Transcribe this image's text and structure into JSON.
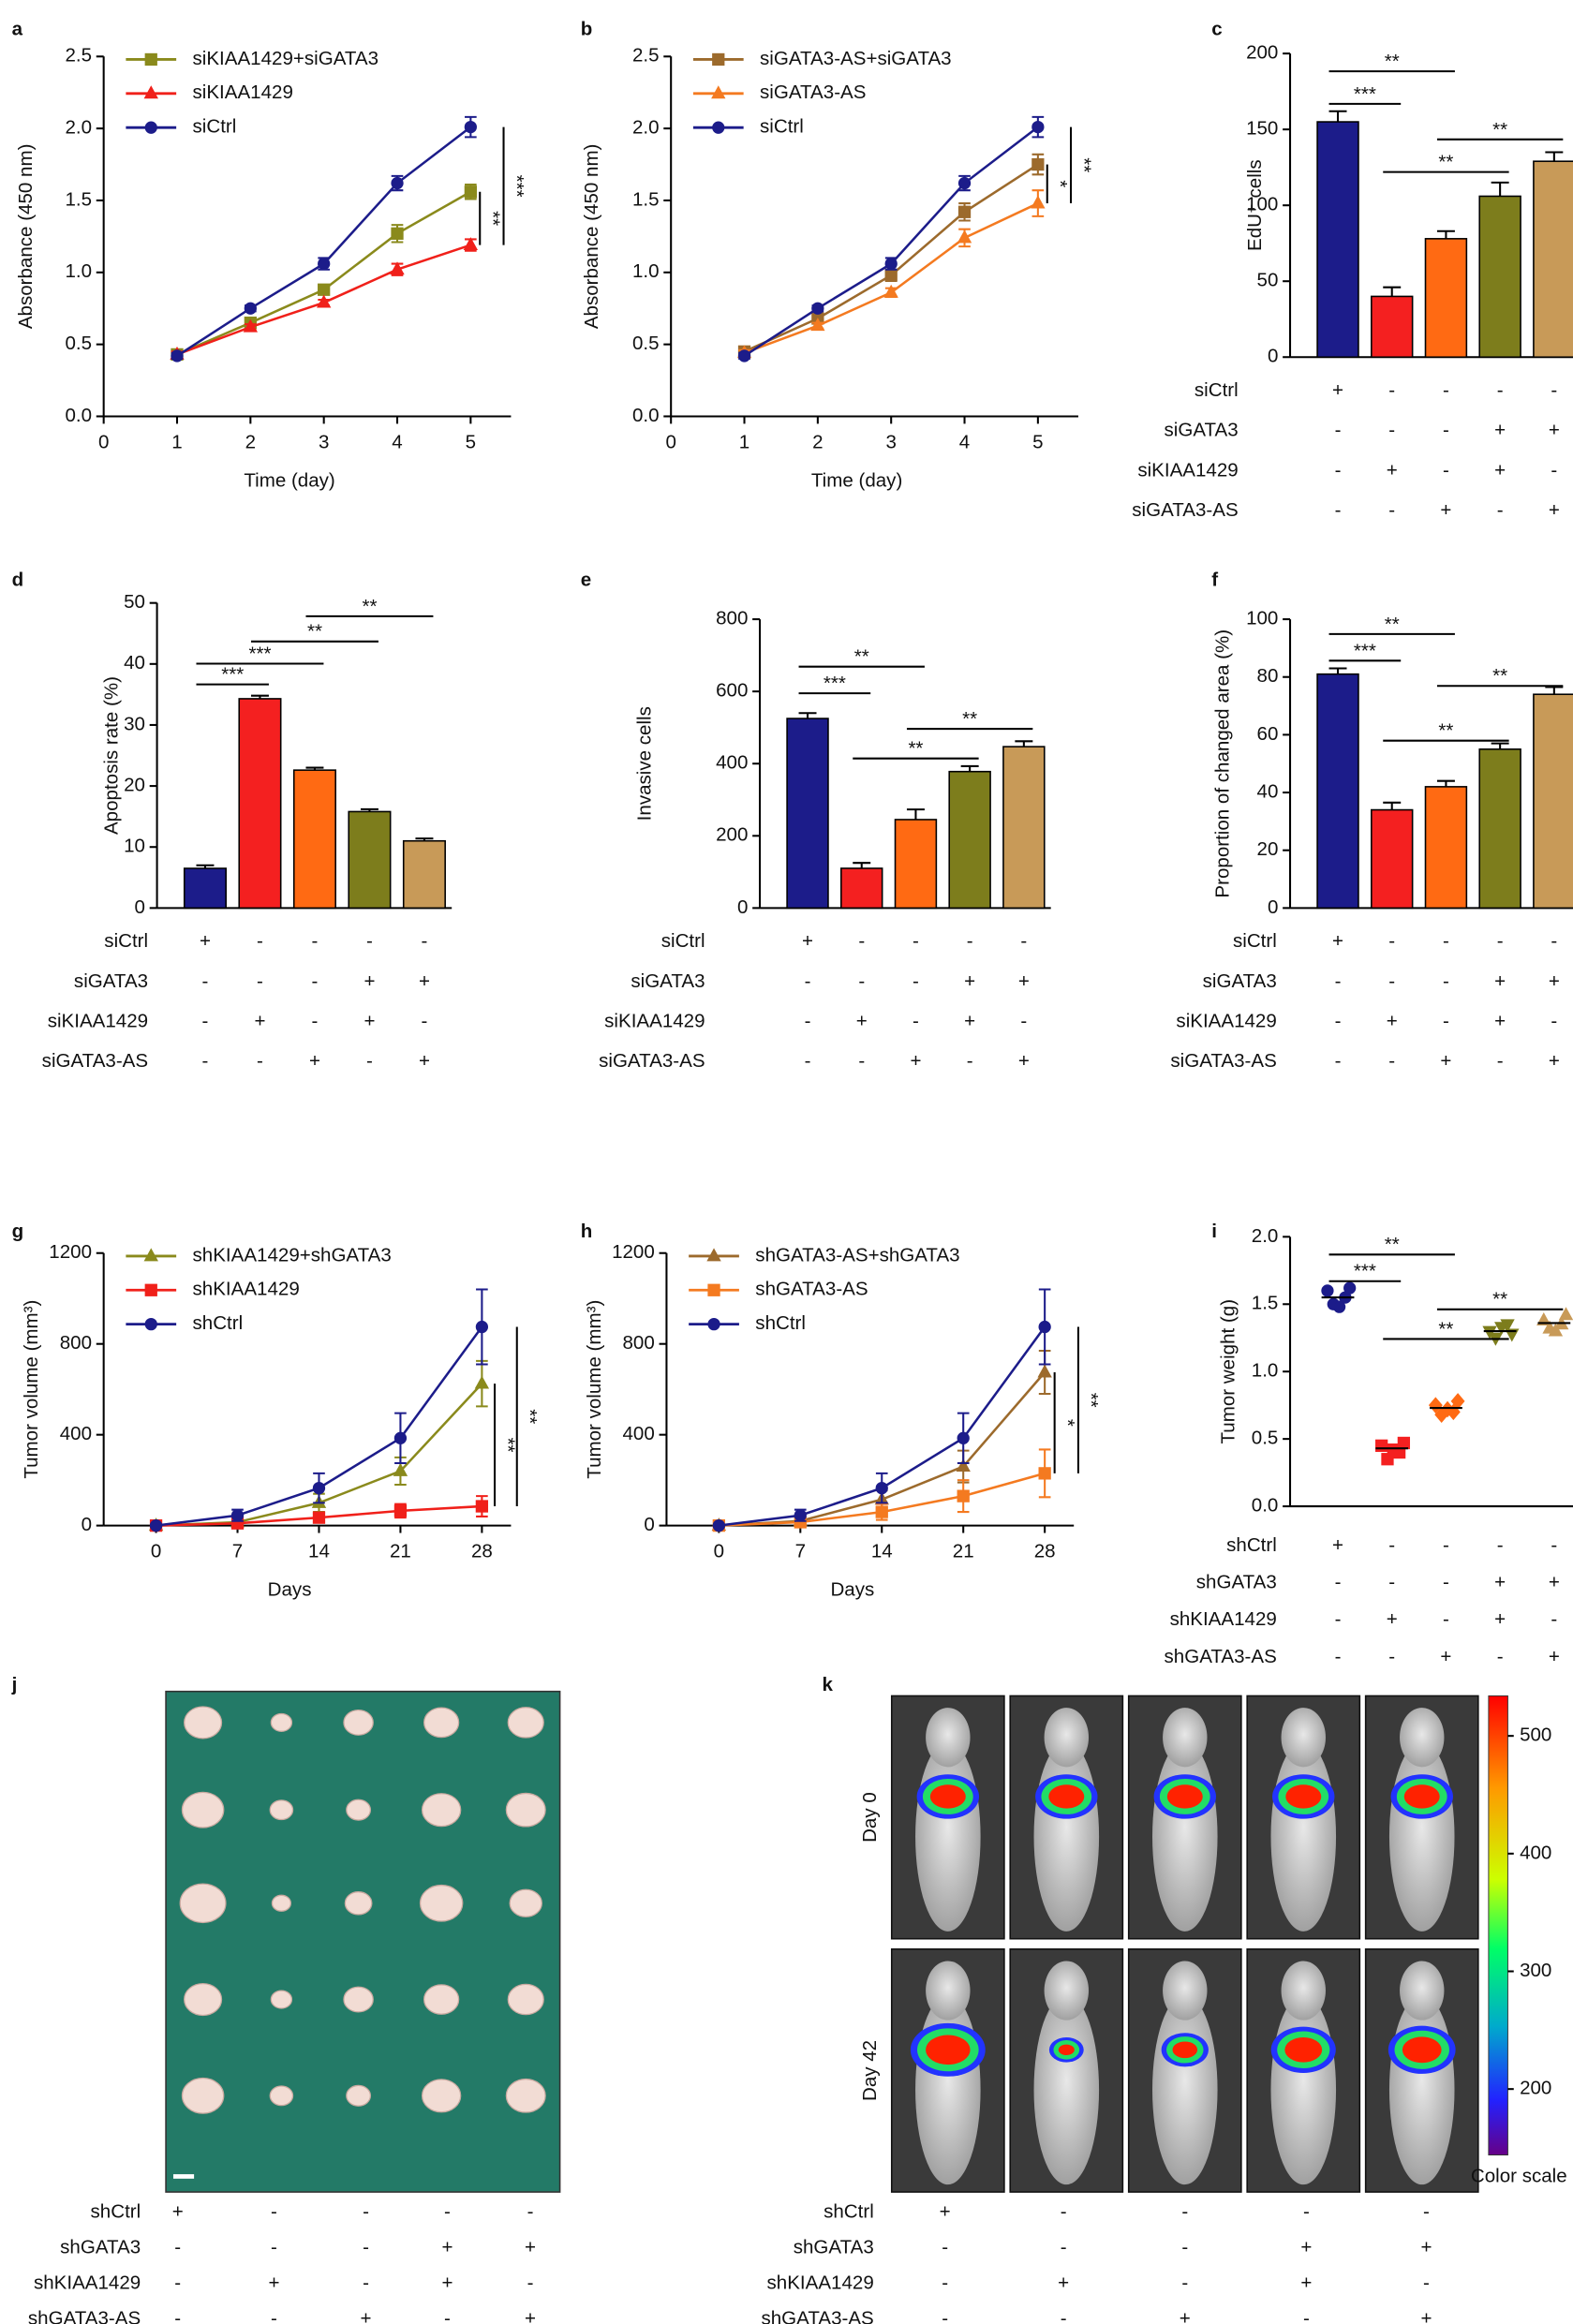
{
  "chart_data": [
    {
      "panel": "a",
      "type": "line",
      "ylabel": "Absorbance (450 nm)",
      "xlabel": "Time (day)",
      "x": [
        1,
        2,
        3,
        4,
        5
      ],
      "xlim": [
        0,
        5.55
      ],
      "xticks": [
        0,
        1,
        2,
        3,
        4,
        5
      ],
      "ylim": [
        0,
        2.5
      ],
      "yticks": [
        {
          "value": 0,
          "label": "0.0"
        },
        0.5,
        {
          "value": 1,
          "label": "1.0"
        },
        1.5,
        {
          "value": 2,
          "label": "2.0"
        },
        2.5
      ],
      "series": [
        {
          "name": "siKIAA1429+siGATA3",
          "color": "#8a8a1c",
          "marker": "square",
          "values": [
            0.43,
            0.65,
            0.88,
            1.27,
            1.56
          ],
          "errors": [
            0.02,
            0.03,
            0.03,
            0.06,
            0.05
          ]
        },
        {
          "name": "siKIAA1429",
          "color": "#f0201a",
          "marker": "triangle",
          "values": [
            0.43,
            0.62,
            0.79,
            1.02,
            1.19
          ],
          "errors": [
            0.02,
            0.02,
            0.02,
            0.04,
            0.04
          ]
        },
        {
          "name": "siCtrl",
          "color": "#1c1c8a",
          "marker": "circle",
          "values": [
            0.42,
            0.75,
            1.06,
            1.62,
            2.01
          ],
          "errors": [
            0.02,
            0.02,
            0.04,
            0.05,
            0.07
          ]
        }
      ],
      "significance": [
        "**",
        "***"
      ]
    },
    {
      "panel": "b",
      "type": "line",
      "ylabel": "Absorbance (450 nm)",
      "xlabel": "Time (day)",
      "x": [
        1,
        2,
        3,
        4,
        5
      ],
      "xlim": [
        0,
        5.55
      ],
      "xticks": [
        0,
        1,
        2,
        3,
        4,
        5
      ],
      "ylim": [
        0,
        2.5
      ],
      "yticks": [
        {
          "value": 0,
          "label": "0.0"
        },
        0.5,
        {
          "value": 1,
          "label": "1.0"
        },
        1.5,
        {
          "value": 2,
          "label": "2.0"
        },
        2.5
      ],
      "series": [
        {
          "name": "siGATA3-AS+siGATA3",
          "color": "#9c6a2c",
          "marker": "square",
          "values": [
            0.45,
            0.68,
            0.98,
            1.42,
            1.75
          ],
          "errors": [
            0.02,
            0.03,
            0.04,
            0.06,
            0.07
          ]
        },
        {
          "name": "siGATA3-AS",
          "color": "#f47a20",
          "marker": "triangle",
          "values": [
            0.44,
            0.63,
            0.86,
            1.24,
            1.48
          ],
          "errors": [
            0.02,
            0.02,
            0.03,
            0.06,
            0.09
          ]
        },
        {
          "name": "siCtrl",
          "color": "#1c1c8a",
          "marker": "circle",
          "values": [
            0.42,
            0.75,
            1.06,
            1.62,
            2.01
          ],
          "errors": [
            0.02,
            0.02,
            0.04,
            0.05,
            0.07
          ]
        }
      ],
      "significance": [
        "*",
        "**"
      ]
    },
    {
      "panel": "c",
      "type": "bar",
      "ylabel": "EdU⁺ cells",
      "values": [
        155,
        40,
        78,
        106,
        129
      ],
      "errors": [
        7,
        6,
        5,
        9,
        6
      ],
      "colors": [
        "#1c1c8a",
        "#f42020",
        "#ff6a13",
        "#7d7d1c",
        "#c89a58"
      ],
      "ylim": [
        0,
        200
      ],
      "yticks": [
        0,
        50,
        100,
        150,
        200
      ],
      "conditions": [
        {
          "name": "siCtrl",
          "signs": [
            "+",
            "-",
            "-",
            "-",
            "-"
          ]
        },
        {
          "name": "siGATA3",
          "signs": [
            "-",
            "-",
            "-",
            "+",
            "+"
          ]
        },
        {
          "name": "siKIAA1429",
          "signs": [
            "-",
            "+",
            "-",
            "+",
            "-"
          ]
        },
        {
          "name": "siGATA3-AS",
          "signs": [
            "-",
            "-",
            "+",
            "-",
            "+"
          ]
        }
      ],
      "significance": [
        "**",
        "***",
        "**",
        "**"
      ]
    },
    {
      "panel": "d",
      "type": "bar",
      "ylabel": "Apoptosis rate (%)",
      "values": [
        6.5,
        34.3,
        22.6,
        15.8,
        11.0
      ],
      "errors": [
        0.5,
        0.5,
        0.4,
        0.4,
        0.4
      ],
      "colors": [
        "#1c1c8a",
        "#f42020",
        "#ff6a13",
        "#7d7d1c",
        "#c89a58"
      ],
      "ylim": [
        0,
        50
      ],
      "yticks": [
        0,
        10,
        20,
        30,
        40,
        50
      ],
      "conditions": [
        {
          "name": "siCtrl",
          "signs": [
            "+",
            "-",
            "-",
            "-",
            "-"
          ]
        },
        {
          "name": "siGATA3",
          "signs": [
            "-",
            "-",
            "-",
            "+",
            "+"
          ]
        },
        {
          "name": "siKIAA1429",
          "signs": [
            "-",
            "+",
            "-",
            "+",
            "-"
          ]
        },
        {
          "name": "siGATA3-AS",
          "signs": [
            "-",
            "-",
            "+",
            "-",
            "+"
          ]
        }
      ],
      "significance": [
        "***",
        "***",
        "**",
        "**"
      ]
    },
    {
      "panel": "e",
      "type": "bar",
      "ylabel": "Invasive cells",
      "values": [
        525,
        110,
        245,
        378,
        447
      ],
      "errors": [
        15,
        15,
        28,
        15,
        15
      ],
      "colors": [
        "#1c1c8a",
        "#f42020",
        "#ff6a13",
        "#7d7d1c",
        "#c89a58"
      ],
      "ylim": [
        0,
        800
      ],
      "yticks": [
        0,
        200,
        400,
        600,
        800
      ],
      "conditions": [
        {
          "name": "siCtrl",
          "signs": [
            "+",
            "-",
            "-",
            "-",
            "-"
          ]
        },
        {
          "name": "siGATA3",
          "signs": [
            "-",
            "-",
            "-",
            "+",
            "+"
          ]
        },
        {
          "name": "siKIAA1429",
          "signs": [
            "-",
            "+",
            "-",
            "+",
            "-"
          ]
        },
        {
          "name": "siGATA3-AS",
          "signs": [
            "-",
            "-",
            "+",
            "-",
            "+"
          ]
        }
      ],
      "significance": [
        "***",
        "**",
        "**",
        "**"
      ]
    },
    {
      "panel": "f",
      "type": "bar",
      "ylabel": "Proportion of changed area (%)",
      "values": [
        81,
        34,
        42,
        55,
        74
      ],
      "errors": [
        2,
        2.5,
        2,
        2,
        2.5
      ],
      "colors": [
        "#1c1c8a",
        "#f42020",
        "#ff6a13",
        "#7d7d1c",
        "#c89a58"
      ],
      "ylim": [
        0,
        100
      ],
      "yticks": [
        0,
        20,
        40,
        60,
        80,
        100
      ],
      "conditions": [
        {
          "name": "siCtrl",
          "signs": [
            "+",
            "-",
            "-",
            "-",
            "-"
          ]
        },
        {
          "name": "siGATA3",
          "signs": [
            "-",
            "-",
            "-",
            "+",
            "+"
          ]
        },
        {
          "name": "siKIAA1429",
          "signs": [
            "-",
            "+",
            "-",
            "+",
            "-"
          ]
        },
        {
          "name": "siGATA3-AS",
          "signs": [
            "-",
            "-",
            "+",
            "-",
            "+"
          ]
        }
      ],
      "significance": [
        "***",
        "**",
        "**",
        "**"
      ]
    },
    {
      "panel": "g",
      "type": "line",
      "ylabel": "Tumor volume (mm³)",
      "xlabel": "Days",
      "x": [
        0,
        7,
        14,
        21,
        28
      ],
      "xlim": [
        -4.5,
        30.5
      ],
      "xticks": [
        0,
        7,
        14,
        21,
        28
      ],
      "ylim": [
        0,
        1200
      ],
      "yticks": [
        0,
        400,
        800,
        1200
      ],
      "series": [
        {
          "name": "shKIAA1429+shGATA3",
          "color": "#8a8a1c",
          "marker": "triangle",
          "values": [
            0,
            15,
            100,
            240,
            625
          ],
          "errors": [
            5,
            10,
            40,
            60,
            100
          ]
        },
        {
          "name": "shKIAA1429",
          "color": "#f0201a",
          "marker": "square",
          "values": [
            0,
            10,
            35,
            65,
            85
          ],
          "errors": [
            5,
            5,
            20,
            30,
            45
          ]
        },
        {
          "name": "shCtrl",
          "color": "#1c1c8a",
          "marker": "circle",
          "values": [
            0,
            45,
            165,
            385,
            875
          ],
          "errors": [
            5,
            25,
            65,
            110,
            165
          ]
        }
      ],
      "significance": [
        "**",
        "**"
      ]
    },
    {
      "panel": "h",
      "type": "line",
      "ylabel": "Tumor volume (mm³)",
      "xlabel": "Days",
      "x": [
        0,
        7,
        14,
        21,
        28
      ],
      "xlim": [
        -4.5,
        30.5
      ],
      "xticks": [
        0,
        7,
        14,
        21,
        28
      ],
      "ylim": [
        0,
        1200
      ],
      "yticks": [
        0,
        400,
        800,
        1200
      ],
      "series": [
        {
          "name": "shGATA3-AS+shGATA3",
          "color": "#9c6a2c",
          "marker": "triangle",
          "values": [
            0,
            20,
            115,
            260,
            675
          ],
          "errors": [
            5,
            10,
            40,
            70,
            95
          ]
        },
        {
          "name": "shGATA3-AS",
          "color": "#f47a20",
          "marker": "square",
          "values": [
            0,
            15,
            60,
            130,
            230
          ],
          "errors": [
            5,
            10,
            35,
            70,
            105
          ]
        },
        {
          "name": "shCtrl",
          "color": "#1c1c8a",
          "marker": "circle",
          "values": [
            0,
            45,
            165,
            385,
            875
          ],
          "errors": [
            5,
            25,
            65,
            110,
            165
          ]
        }
      ],
      "significance": [
        "*",
        "**"
      ]
    },
    {
      "panel": "i",
      "type": "dot",
      "ylabel": "Tumor weight (g)",
      "ylim": [
        0,
        2
      ],
      "yticks": [
        {
          "value": 0,
          "label": "0.0"
        },
        0.5,
        {
          "value": 1,
          "label": "1.0"
        },
        1.5,
        {
          "value": 2,
          "label": "2.0"
        }
      ],
      "groups": [
        {
          "color": "#1c1c8a",
          "marker": "circle",
          "values": [
            1.6,
            1.55,
            1.5,
            1.62,
            1.48
          ],
          "mean": 1.55
        },
        {
          "color": "#f42020",
          "marker": "square",
          "values": [
            0.45,
            0.4,
            0.35,
            0.47,
            0.42
          ],
          "mean": 0.43
        },
        {
          "color": "#ff6a13",
          "marker": "diamond",
          "values": [
            0.75,
            0.7,
            0.68,
            0.78,
            0.72
          ],
          "mean": 0.73
        },
        {
          "color": "#7d7d1c",
          "marker": "tridown",
          "values": [
            1.3,
            1.35,
            1.25,
            1.28,
            1.33
          ],
          "mean": 1.3
        },
        {
          "color": "#c89a58",
          "marker": "triangle",
          "values": [
            1.38,
            1.35,
            1.32,
            1.42,
            1.3
          ],
          "mean": 1.36
        }
      ],
      "conditions": [
        {
          "name": "shCtrl",
          "signs": [
            "+",
            "-",
            "-",
            "-",
            "-"
          ]
        },
        {
          "name": "shGATA3",
          "signs": [
            "-",
            "-",
            "-",
            "+",
            "+"
          ]
        },
        {
          "name": "shKIAA1429",
          "signs": [
            "-",
            "+",
            "-",
            "+",
            "-"
          ]
        },
        {
          "name": "shGATA3-AS",
          "signs": [
            "-",
            "-",
            "+",
            "-",
            "+"
          ]
        }
      ],
      "significance": [
        "***",
        "**",
        "**",
        "**"
      ]
    }
  ],
  "figure_j": {
    "panel": "j",
    "conditions": [
      {
        "name": "shCtrl",
        "signs": [
          "+",
          "-",
          "-",
          "-",
          "-"
        ]
      },
      {
        "name": "shGATA3",
        "signs": [
          "-",
          "-",
          "-",
          "+",
          "+"
        ]
      },
      {
        "name": "shKIAA1429",
        "signs": [
          "-",
          "+",
          "-",
          "+",
          "-"
        ]
      },
      {
        "name": "shGATA3-AS",
        "signs": [
          "-",
          "-",
          "+",
          "-",
          "+"
        ]
      }
    ]
  },
  "figure_k": {
    "panel": "k",
    "rows": [
      "Day 0",
      "Day 42"
    ],
    "colorbar": {
      "lim": [
        144,
        534
      ],
      "ticks": [
        200,
        300,
        400,
        500
      ],
      "label": "Color scale"
    },
    "conditions": [
      {
        "name": "shCtrl",
        "signs": [
          "+",
          "-",
          "-",
          "-",
          "-"
        ]
      },
      {
        "name": "shGATA3",
        "signs": [
          "-",
          "-",
          "-",
          "+",
          "+"
        ]
      },
      {
        "name": "shKIAA1429",
        "signs": [
          "-",
          "+",
          "-",
          "+",
          "-"
        ]
      },
      {
        "name": "shGATA3-AS",
        "signs": [
          "-",
          "-",
          "+",
          "-",
          "+"
        ]
      }
    ]
  }
}
